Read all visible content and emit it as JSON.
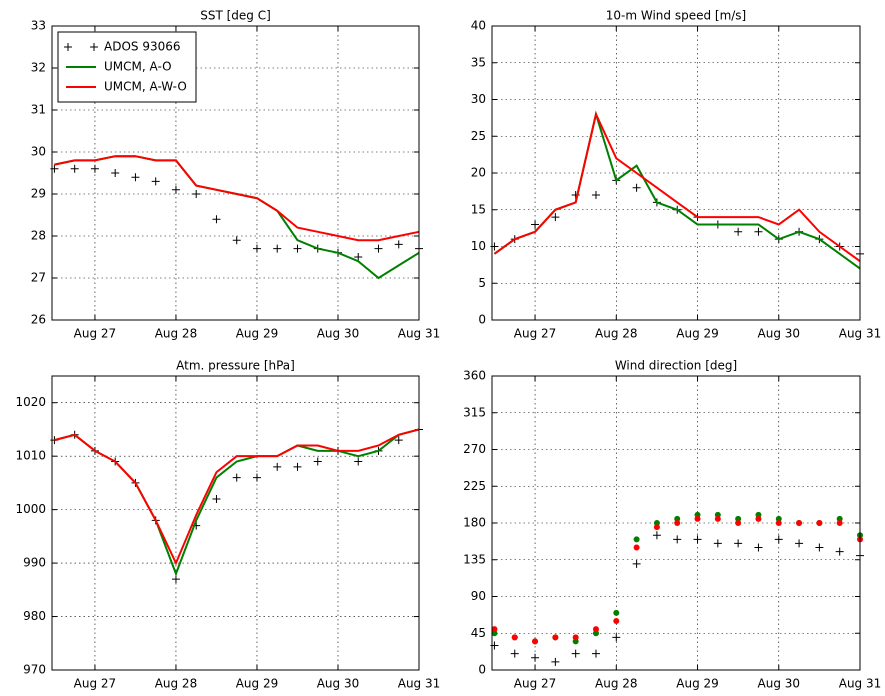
{
  "chart_data": [
    {
      "type": "line",
      "title": "SST [deg C]",
      "x": [
        26.5,
        26.75,
        27,
        27.25,
        27.5,
        27.75,
        28,
        28.25,
        28.5,
        28.75,
        29,
        29.25,
        29.5,
        29.75,
        30,
        30.25,
        30.5,
        30.75,
        31
      ],
      "xlim": [
        26.47,
        31
      ],
      "xticks": [
        {
          "value": 27,
          "label": "Aug 27"
        },
        {
          "value": 28,
          "label": "Aug 28"
        },
        {
          "value": 29,
          "label": "Aug 29"
        },
        {
          "value": 30,
          "label": "Aug 30"
        },
        {
          "value": 31,
          "label": "Aug 31"
        }
      ],
      "ylim": [
        26,
        33
      ],
      "yticks": [
        26,
        27,
        28,
        29,
        30,
        31,
        32,
        33
      ],
      "grid": true,
      "legend": "upper left",
      "series": [
        {
          "name": "ADOS 93066",
          "color": "#000000",
          "marker": "plus",
          "values": [
            29.6,
            29.6,
            29.6,
            29.5,
            29.4,
            29.3,
            29.1,
            29.0,
            28.4,
            27.9,
            27.7,
            27.7,
            27.7,
            27.7,
            27.6,
            27.5,
            27.7,
            27.8,
            27.7
          ]
        },
        {
          "name": "UMCM, A-O",
          "color": "#008000",
          "marker": "line",
          "values": [
            29.7,
            29.8,
            29.8,
            29.9,
            29.9,
            29.8,
            29.8,
            29.2,
            29.1,
            29.0,
            28.9,
            28.6,
            27.9,
            27.7,
            27.6,
            27.4,
            27.0,
            27.3,
            27.6
          ]
        },
        {
          "name": "UMCM, A-W-O",
          "color": "#ff0000",
          "marker": "line",
          "values": [
            29.7,
            29.8,
            29.8,
            29.9,
            29.9,
            29.8,
            29.8,
            29.2,
            29.1,
            29.0,
            28.9,
            28.6,
            28.2,
            28.1,
            28.0,
            27.9,
            27.9,
            28.0,
            28.1
          ]
        }
      ]
    },
    {
      "type": "line",
      "title": "10-m Wind speed [m/s]",
      "x": [
        26.5,
        26.75,
        27,
        27.25,
        27.5,
        27.75,
        28,
        28.25,
        28.5,
        28.75,
        29,
        29.25,
        29.5,
        29.75,
        30,
        30.25,
        30.5,
        30.75,
        31
      ],
      "xlim": [
        26.47,
        31
      ],
      "xticks": [
        {
          "value": 27,
          "label": "Aug 27"
        },
        {
          "value": 28,
          "label": "Aug 28"
        },
        {
          "value": 29,
          "label": "Aug 29"
        },
        {
          "value": 30,
          "label": "Aug 30"
        },
        {
          "value": 31,
          "label": "Aug 31"
        }
      ],
      "ylim": [
        0,
        40
      ],
      "yticks": [
        0,
        5,
        10,
        15,
        20,
        25,
        30,
        35,
        40
      ],
      "grid": true,
      "series": [
        {
          "color": "#000000",
          "marker": "plus",
          "values": [
            10,
            11,
            13,
            14,
            17,
            17,
            19,
            18,
            16,
            15,
            14,
            13,
            12,
            12,
            11,
            12,
            11,
            10,
            9
          ]
        },
        {
          "color": "#008000",
          "marker": "line",
          "values": [
            9,
            11,
            12,
            15,
            16,
            28,
            19,
            21,
            16,
            15,
            13,
            13,
            13,
            13,
            11,
            12,
            11,
            9,
            7
          ]
        },
        {
          "color": "#ff0000",
          "marker": "line",
          "values": [
            9,
            11,
            12,
            15,
            16,
            28,
            22,
            20,
            18,
            16,
            14,
            14,
            14,
            14,
            13,
            15,
            12,
            10,
            8
          ]
        }
      ]
    },
    {
      "type": "line",
      "title": "Atm. pressure [hPa]",
      "x": [
        26.5,
        26.75,
        27,
        27.25,
        27.5,
        27.75,
        28,
        28.25,
        28.5,
        28.75,
        29,
        29.25,
        29.5,
        29.75,
        30,
        30.25,
        30.5,
        30.75,
        31
      ],
      "xlim": [
        26.47,
        31
      ],
      "xticks": [
        {
          "value": 27,
          "label": "Aug 27"
        },
        {
          "value": 28,
          "label": "Aug 28"
        },
        {
          "value": 29,
          "label": "Aug 29"
        },
        {
          "value": 30,
          "label": "Aug 30"
        },
        {
          "value": 31,
          "label": "Aug 31"
        }
      ],
      "ylim": [
        970,
        1025
      ],
      "yticks": [
        970,
        980,
        990,
        1000,
        1010,
        1020
      ],
      "grid": true,
      "series": [
        {
          "color": "#000000",
          "marker": "plus",
          "values": [
            1013,
            1014,
            1011,
            1009,
            1005,
            998,
            987,
            997,
            1002,
            1006,
            1006,
            1008,
            1008,
            1009,
            1011,
            1009,
            1011,
            1013,
            1015
          ]
        },
        {
          "color": "#008000",
          "marker": "line",
          "values": [
            1013,
            1014,
            1011,
            1009,
            1005,
            998,
            988,
            998,
            1006,
            1009,
            1010,
            1010,
            1012,
            1011,
            1011,
            1010,
            1011,
            1014,
            1015
          ]
        },
        {
          "color": "#ff0000",
          "marker": "line",
          "values": [
            1013,
            1014,
            1011,
            1009,
            1005,
            998,
            990,
            999,
            1007,
            1010,
            1010,
            1010,
            1012,
            1012,
            1011,
            1011,
            1012,
            1014,
            1015
          ]
        }
      ]
    },
    {
      "type": "scatter",
      "title": "Wind direction [deg]",
      "x": [
        26.5,
        26.75,
        27,
        27.25,
        27.5,
        27.75,
        28,
        28.25,
        28.5,
        28.75,
        29,
        29.25,
        29.5,
        29.75,
        30,
        30.25,
        30.5,
        30.75,
        31
      ],
      "xlim": [
        26.47,
        31
      ],
      "xticks": [
        {
          "value": 27,
          "label": "Aug 27"
        },
        {
          "value": 28,
          "label": "Aug 28"
        },
        {
          "value": 29,
          "label": "Aug 29"
        },
        {
          "value": 30,
          "label": "Aug 30"
        },
        {
          "value": 31,
          "label": "Aug 31"
        }
      ],
      "ylim": [
        0,
        360
      ],
      "yticks": [
        0,
        45,
        90,
        135,
        180,
        225,
        270,
        315,
        360
      ],
      "grid": true,
      "series": [
        {
          "color": "#000000",
          "marker": "plus",
          "values": [
            30,
            20,
            15,
            10,
            20,
            20,
            40,
            130,
            165,
            160,
            160,
            155,
            155,
            150,
            160,
            155,
            150,
            145,
            140
          ]
        },
        {
          "color": "#008000",
          "marker": "dot",
          "values": [
            45,
            40,
            35,
            40,
            35,
            45,
            70,
            160,
            180,
            185,
            190,
            190,
            185,
            190,
            185,
            180,
            180,
            185,
            165
          ]
        },
        {
          "color": "#ff0000",
          "marker": "dot",
          "values": [
            50,
            40,
            35,
            40,
            40,
            50,
            60,
            150,
            175,
            180,
            185,
            185,
            180,
            185,
            180,
            180,
            180,
            180,
            160
          ]
        }
      ]
    }
  ]
}
